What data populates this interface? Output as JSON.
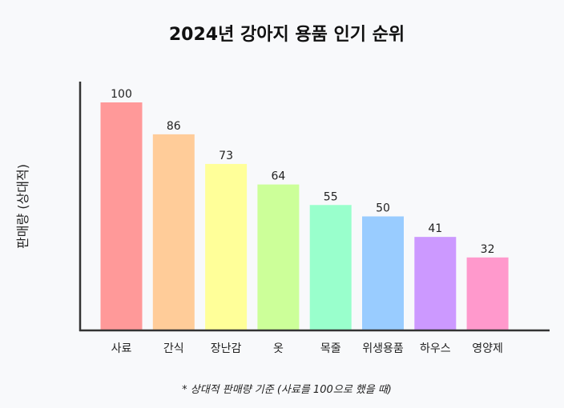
{
  "chart_data": {
    "type": "bar",
    "title": "2024년 강아지 용품 인기 순위",
    "xlabel": "",
    "ylabel": "판매량 (상대적)",
    "categories": [
      "사료",
      "간식",
      "장난감",
      "옷",
      "목줄",
      "위생용품",
      "하우스",
      "영양제"
    ],
    "values": [
      100,
      86,
      73,
      64,
      55,
      50,
      41,
      32
    ],
    "colors": [
      "#ff9999",
      "#ffcc99",
      "#ffff99",
      "#ccff99",
      "#99ffcc",
      "#99ccff",
      "#cc99ff",
      "#ff99cc"
    ],
    "ylim": [
      0,
      110
    ],
    "grid": false,
    "footnote": "* 상대적 판매량 기준 (사료를 100으로 했을 때)"
  }
}
